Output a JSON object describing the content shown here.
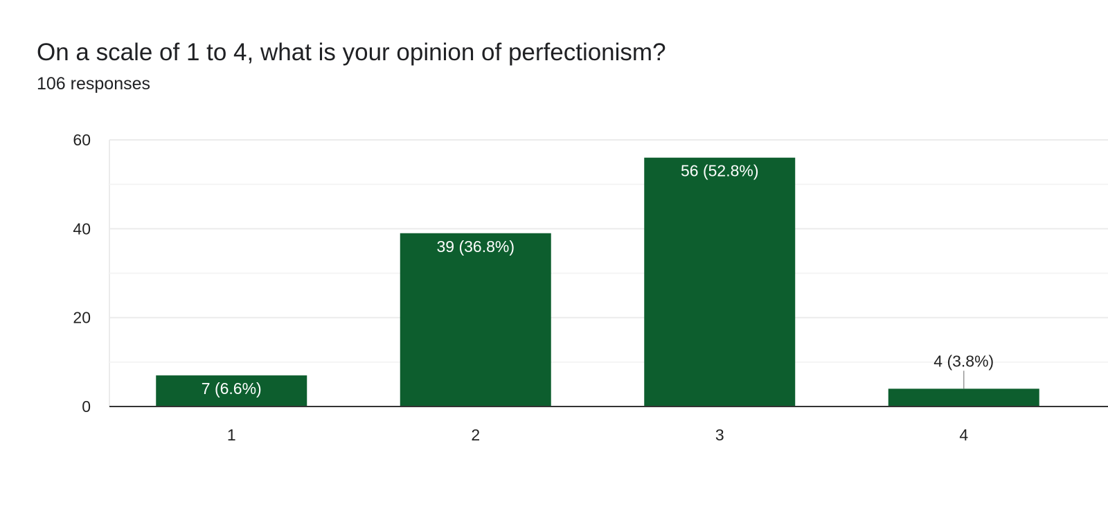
{
  "header": {
    "question": "On a scale of 1 to 4, what is your opinion of perfectionism?",
    "responses": "106 responses"
  },
  "colors": {
    "bar": "#0d5e2e",
    "grid": "#ebebeb",
    "baseline": "#333333",
    "label_inside": "#ffffff",
    "label_outside": "#222222"
  },
  "chart_data": {
    "type": "bar",
    "title": "On a scale of 1 to 4, what is your opinion of perfectionism?",
    "categories": [
      "1",
      "2",
      "3",
      "4"
    ],
    "values": [
      7,
      39,
      56,
      4
    ],
    "data_labels": [
      "7 (6.6%)",
      "39 (36.8%)",
      "56 (52.8%)",
      "4 (3.8%)"
    ],
    "xlabel": "",
    "ylabel": "",
    "ylim": [
      0,
      60
    ],
    "yticks": [
      0,
      20,
      40,
      60
    ],
    "minor_gridlines": [
      10,
      30,
      50
    ],
    "grid": true,
    "legend": "none"
  }
}
